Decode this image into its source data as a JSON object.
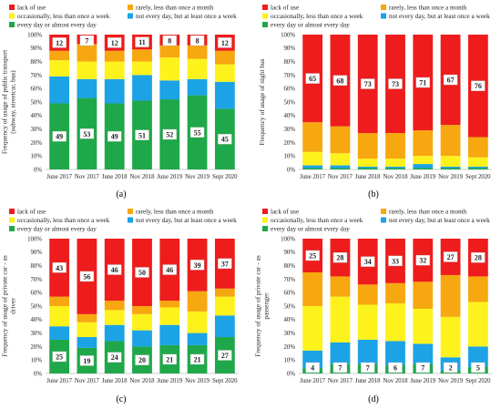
{
  "legend_labels": {
    "lack": "lack of use",
    "rarely": "rarely, less than once a month",
    "occasionally": "occasionally, less than once a week",
    "noteveryday": "not every day, but at least once a week",
    "everyday": "every day or almost every day"
  },
  "colors": {
    "lack": "#ee1c1c",
    "rarely": "#f7a70f",
    "occasionally": "#fdf21c",
    "noteveryday": "#1ca3e6",
    "everyday": "#1fa84a"
  },
  "chart_data": [
    {
      "panel": "(a)",
      "type": "bar",
      "stacked": true,
      "ylabel": "Frequency of usage of public transport (subway, streetcar, bus)",
      "ylim": [
        0,
        100
      ],
      "yticks": [
        "0%",
        "10%",
        "20%",
        "30%",
        "40%",
        "50%",
        "60%",
        "70%",
        "80%",
        "90%",
        "100%"
      ],
      "categories": [
        "June 2017",
        "Nov 2017",
        "June 2018",
        "Nov 2018",
        "June 2019",
        "Nov 2019",
        "Sept 2020"
      ],
      "legend_order": [
        "lack",
        "rarely",
        "occasionally",
        "noteveryday",
        "everyday"
      ],
      "series": [
        {
          "key": "everyday",
          "name": "every day or almost every day",
          "values": [
            49,
            53,
            49,
            51,
            52,
            55,
            45
          ]
        },
        {
          "key": "noteveryday",
          "name": "not every day, but at least once a week",
          "values": [
            20,
            14,
            18,
            19,
            14,
            12,
            20
          ]
        },
        {
          "key": "occasionally",
          "name": "occasionally, less than once a week",
          "values": [
            12,
            13,
            13,
            10,
            17,
            15,
            13
          ]
        },
        {
          "key": "rarely",
          "name": "rarely, less than once a month",
          "values": [
            7,
            13,
            8,
            9,
            9,
            10,
            10
          ]
        },
        {
          "key": "lack",
          "name": "lack of use",
          "values": [
            12,
            7,
            12,
            11,
            8,
            8,
            12
          ]
        }
      ],
      "labels": [
        {
          "series": "lack",
          "values": [
            12,
            7,
            12,
            11,
            8,
            8,
            12
          ]
        },
        {
          "series": "everyday",
          "values": [
            49,
            53,
            49,
            51,
            52,
            55,
            45
          ]
        }
      ]
    },
    {
      "panel": "(b)",
      "type": "bar",
      "stacked": true,
      "ylabel": "Frequency of usage of night bus",
      "ylim": [
        0,
        100
      ],
      "yticks": [
        "0%",
        "10%",
        "20%",
        "30%",
        "40%",
        "50%",
        "60%",
        "70%",
        "80%",
        "90%",
        "100%"
      ],
      "categories": [
        "June 2017",
        "Nov 2017",
        "June 2018",
        "Nov 2018",
        "June 2019",
        "Nov 2019",
        "Sept 2020"
      ],
      "legend_order": [
        "lack",
        "rarely",
        "occasionally",
        "noteveryday",
        "everyday"
      ],
      "series": [
        {
          "key": "everyday",
          "name": "every day or almost every day",
          "values": [
            1,
            1,
            1,
            1,
            1,
            1,
            1
          ]
        },
        {
          "key": "noteveryday",
          "name": "not every day, but at least once a week",
          "values": [
            2,
            2,
            1,
            1,
            3,
            1,
            1
          ]
        },
        {
          "key": "occasionally",
          "name": "occasionally, less than once a week",
          "values": [
            10,
            9,
            6,
            6,
            6,
            8,
            7
          ]
        },
        {
          "key": "rarely",
          "name": "rarely, less than once a month",
          "values": [
            22,
            20,
            19,
            19,
            19,
            23,
            15
          ]
        },
        {
          "key": "lack",
          "name": "lack of use",
          "values": [
            65,
            68,
            73,
            73,
            71,
            67,
            76
          ]
        }
      ],
      "labels": [
        {
          "series": "lack",
          "values": [
            65,
            68,
            73,
            73,
            71,
            67,
            76
          ]
        }
      ]
    },
    {
      "panel": "(c)",
      "type": "bar",
      "stacked": true,
      "ylabel": "Frequency of usage of private car - as driver",
      "ylim": [
        0,
        100
      ],
      "yticks": [
        "0%",
        "10%",
        "20%",
        "30%",
        "40%",
        "50%",
        "60%",
        "70%",
        "80%",
        "90%",
        "100%"
      ],
      "categories": [
        "June 2017",
        "Nov 2017",
        "June 2018",
        "Nov 2018",
        "June 2019",
        "Nov 2019",
        "Sept 2020"
      ],
      "legend_order": [
        "lack",
        "rarely",
        "occasionally",
        "noteveryday",
        "everyday"
      ],
      "series": [
        {
          "key": "everyday",
          "name": "every day or almost every day",
          "values": [
            25,
            19,
            24,
            20,
            21,
            21,
            27
          ]
        },
        {
          "key": "noteveryday",
          "name": "not every day, but at least once a week",
          "values": [
            10,
            8,
            12,
            12,
            15,
            9,
            16
          ]
        },
        {
          "key": "occasionally",
          "name": "occasionally, less than once a week",
          "values": [
            15,
            11,
            11,
            12,
            13,
            16,
            14
          ]
        },
        {
          "key": "rarely",
          "name": "rarely, less than once a month",
          "values": [
            7,
            6,
            7,
            6,
            5,
            15,
            6
          ]
        },
        {
          "key": "lack",
          "name": "lack of use",
          "values": [
            43,
            56,
            46,
            50,
            46,
            39,
            37
          ]
        }
      ],
      "labels": [
        {
          "series": "lack",
          "values": [
            43,
            56,
            46,
            50,
            46,
            39,
            37
          ]
        },
        {
          "series": "everyday",
          "values": [
            25,
            19,
            24,
            20,
            21,
            21,
            27
          ]
        }
      ]
    },
    {
      "panel": "(d)",
      "type": "bar",
      "stacked": true,
      "ylabel": "Frequency of usage of private car - as passenger",
      "ylim": [
        0,
        100
      ],
      "yticks": [
        "0%",
        "10%",
        "20%",
        "30%",
        "40%",
        "50%",
        "60%",
        "70%",
        "80%",
        "90%",
        "100%"
      ],
      "categories": [
        "June 2017",
        "Nov 2017",
        "June 2018",
        "Nov 2018",
        "June 2019",
        "Nov 2019",
        "Sept 2020"
      ],
      "legend_order": [
        "lack",
        "rarely",
        "occasionally",
        "noteveryday",
        "everyday"
      ],
      "series": [
        {
          "key": "everyday",
          "name": "every day or almost every day",
          "values": [
            4,
            7,
            7,
            6,
            7,
            2,
            5
          ]
        },
        {
          "key": "noteveryday",
          "name": "not every day, but at least once a week",
          "values": [
            13,
            16,
            18,
            18,
            15,
            10,
            15
          ]
        },
        {
          "key": "occasionally",
          "name": "occasionally, less than once a week",
          "values": [
            33,
            34,
            26,
            28,
            26,
            30,
            33
          ]
        },
        {
          "key": "rarely",
          "name": "rarely, less than once a month",
          "values": [
            25,
            15,
            15,
            15,
            20,
            31,
            19
          ]
        },
        {
          "key": "lack",
          "name": "lack of use",
          "values": [
            25,
            28,
            34,
            33,
            32,
            27,
            28
          ]
        }
      ],
      "labels": [
        {
          "series": "lack",
          "values": [
            25,
            28,
            34,
            33,
            32,
            27,
            28
          ]
        },
        {
          "series": "everyday",
          "values": [
            4,
            7,
            7,
            6,
            7,
            2,
            5
          ]
        }
      ]
    }
  ]
}
